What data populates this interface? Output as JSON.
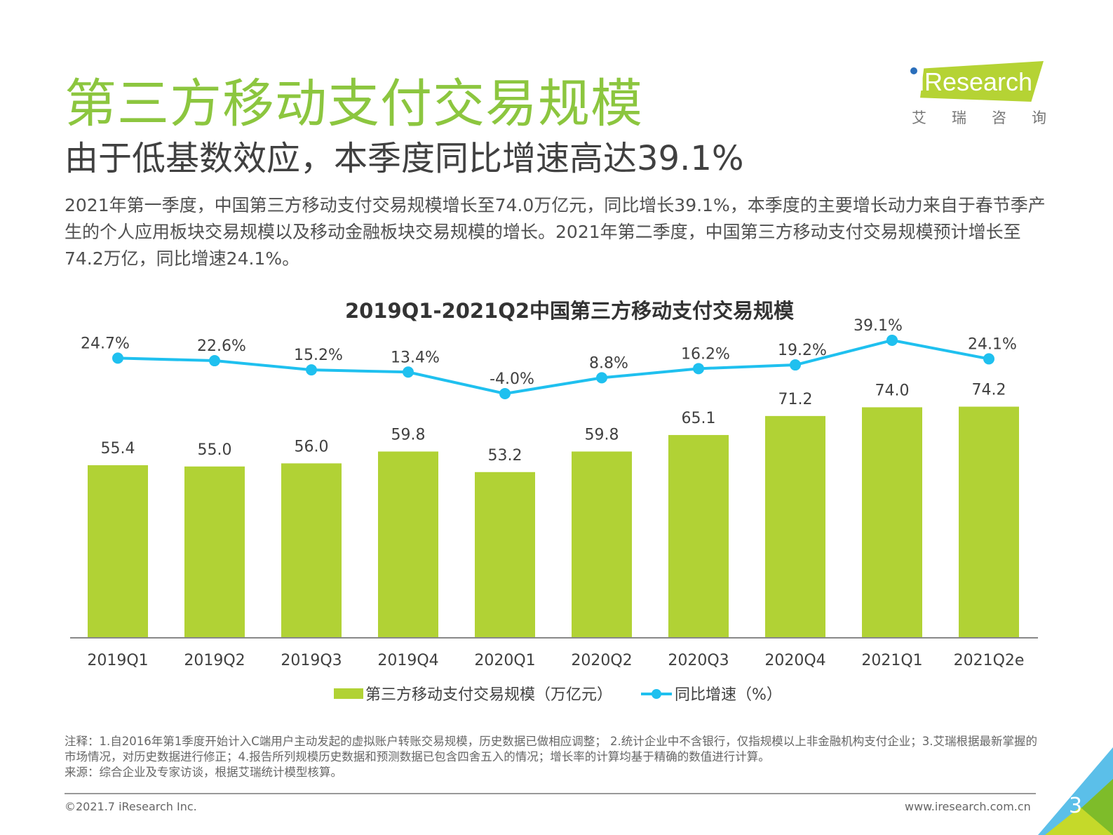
{
  "header": {
    "title": "第三方移动支付交易规模",
    "subtitle": "由于低基数效应，本季度同比增速高达39.1%",
    "body": "2021年第一季度，中国第三方移动支付交易规模增长至74.0万亿元，同比增长39.1%，本季度的主要增长动力来自于春节季产生的个人应用板块交易规模以及移动金融板块交易规模的增长。2021年第二季度，中国第三方移动支付交易规模预计增长至74.2万亿，同比增速24.1%。"
  },
  "logo": {
    "text": "iResearch",
    "cn": "艾瑞咨询",
    "color": "#b5d334"
  },
  "chart_data": {
    "type": "bar+line",
    "title": "2019Q1-2021Q2中国第三方移动支付交易规模",
    "categories": [
      "2019Q1",
      "2019Q2",
      "2019Q3",
      "2019Q4",
      "2020Q1",
      "2020Q2",
      "2020Q3",
      "2020Q4",
      "2021Q1",
      "2021Q2e"
    ],
    "series": [
      {
        "name": "第三方移动支付交易规模（万亿元）",
        "type": "bar",
        "color": "#b1d235",
        "values": [
          55.4,
          55.0,
          56.0,
          59.8,
          53.2,
          59.8,
          65.1,
          71.2,
          74.0,
          74.2
        ],
        "labels": [
          "55.4",
          "55.0",
          "56.0",
          "59.8",
          "53.2",
          "59.8",
          "65.1",
          "71.2",
          "74.0",
          "74.2"
        ]
      },
      {
        "name": "同比增速（%）",
        "type": "line",
        "color": "#1fc0ef",
        "values": [
          24.7,
          22.6,
          15.2,
          13.4,
          -4.0,
          8.8,
          16.2,
          19.2,
          39.1,
          24.1
        ],
        "labels": [
          "24.7%",
          "22.6%",
          "15.2%",
          "13.4%",
          "-4.0%",
          "8.8%",
          "16.2%",
          "19.2%",
          "39.1%",
          "24.1%"
        ]
      }
    ],
    "legend": "bottom",
    "grid": false
  },
  "notes": {
    "line1": "注释：1.自2016年第1季度开始计入C端用户主动发起的虚拟账户转账交易规模，历史数据已做相应调整； 2.统计企业中不含银行，仅指规模以上非金融机构支付企业；3.艾瑞根据最新掌握的市场情况，对历史数据进行修正；4.报告所列规模历史数据和预测数据已包含四舍五入的情况；增长率的计算均基于精确的数值进行计算。",
    "source": "来源：综合企业及专家访谈，根据艾瑞统计模型核算。"
  },
  "footer": {
    "copyright": "©2021.7 iResearch Inc.",
    "website": "www.iresearch.com.cn",
    "page": "3"
  }
}
